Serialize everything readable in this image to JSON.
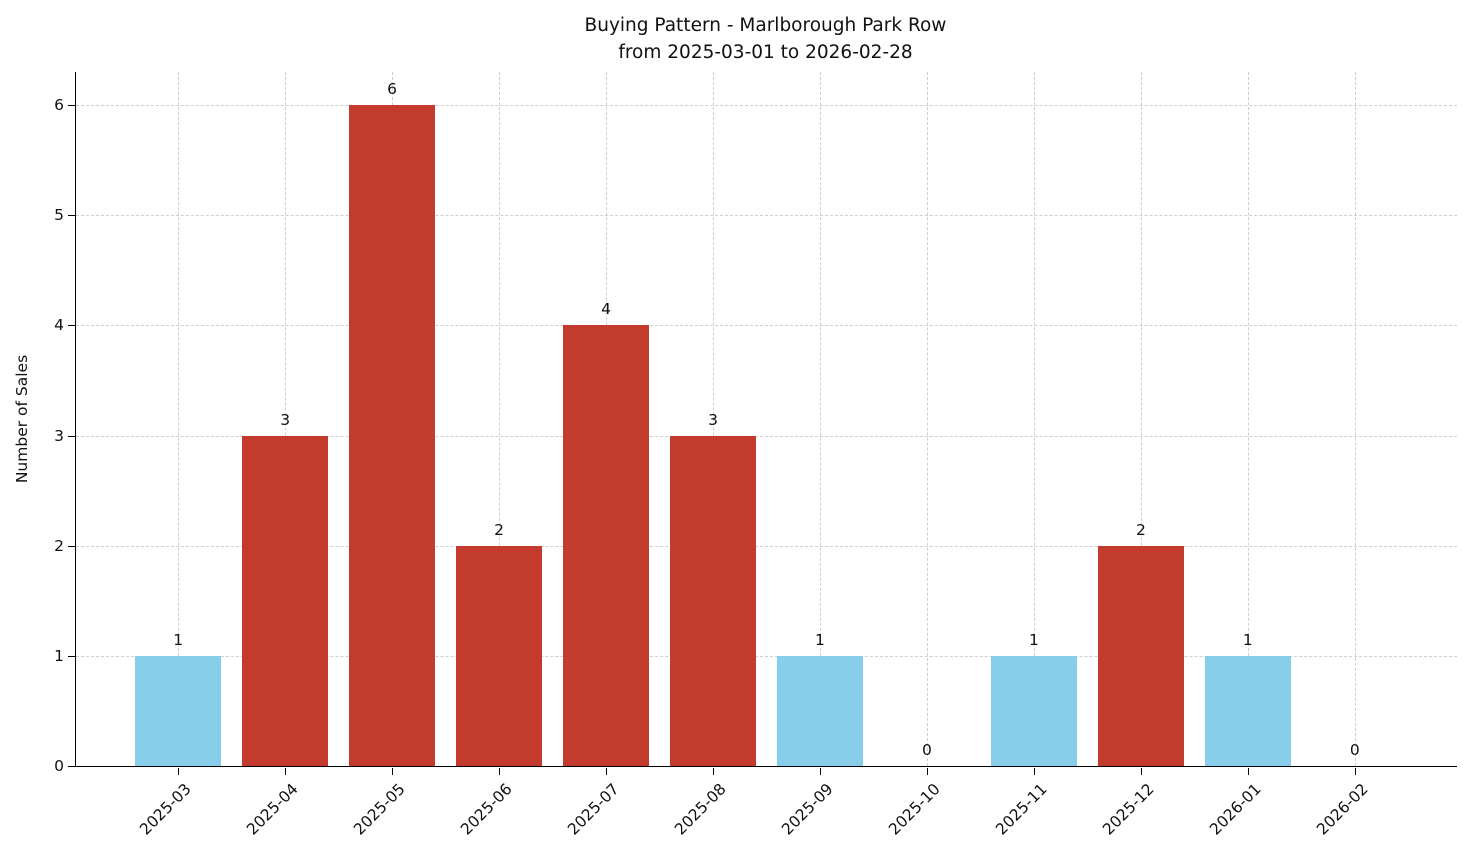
{
  "title": {
    "line1": "Buying Pattern - Marlborough Park Row",
    "line2": "from 2025-03-01 to 2026-02-28"
  },
  "chart_data": {
    "type": "bar",
    "title": "Buying Pattern - Marlborough Park Row\nfrom 2025-03-01 to 2026-02-28",
    "xlabel": "",
    "ylabel": "Number of Sales",
    "categories": [
      "2025-03",
      "2025-04",
      "2025-05",
      "2025-06",
      "2025-07",
      "2025-08",
      "2025-09",
      "2025-10",
      "2025-11",
      "2025-12",
      "2026-01",
      "2026-02"
    ],
    "values": [
      1,
      3,
      6,
      2,
      4,
      3,
      1,
      0,
      1,
      2,
      1,
      0
    ],
    "bar_colors": [
      "#87ceeb",
      "#c23b2c",
      "#c23b2c",
      "#c23b2c",
      "#c23b2c",
      "#c23b2c",
      "#87ceeb",
      "none",
      "#87ceeb",
      "#c23b2c",
      "#87ceeb",
      "none"
    ],
    "value_labels": [
      "1",
      "3",
      "6",
      "2",
      "4",
      "3",
      "1",
      "0",
      "1",
      "2",
      "1",
      "0"
    ],
    "yticks": [
      0,
      1,
      2,
      3,
      4,
      5,
      6
    ],
    "ylim": [
      0,
      6.3
    ],
    "grid": "dashed",
    "legend": "none",
    "colors": {
      "highlight_bar": "#c23b2c",
      "base_bar": "#87ceeb",
      "grid": "#cfcfcf",
      "axis": "#000000",
      "text": "#111111"
    }
  }
}
